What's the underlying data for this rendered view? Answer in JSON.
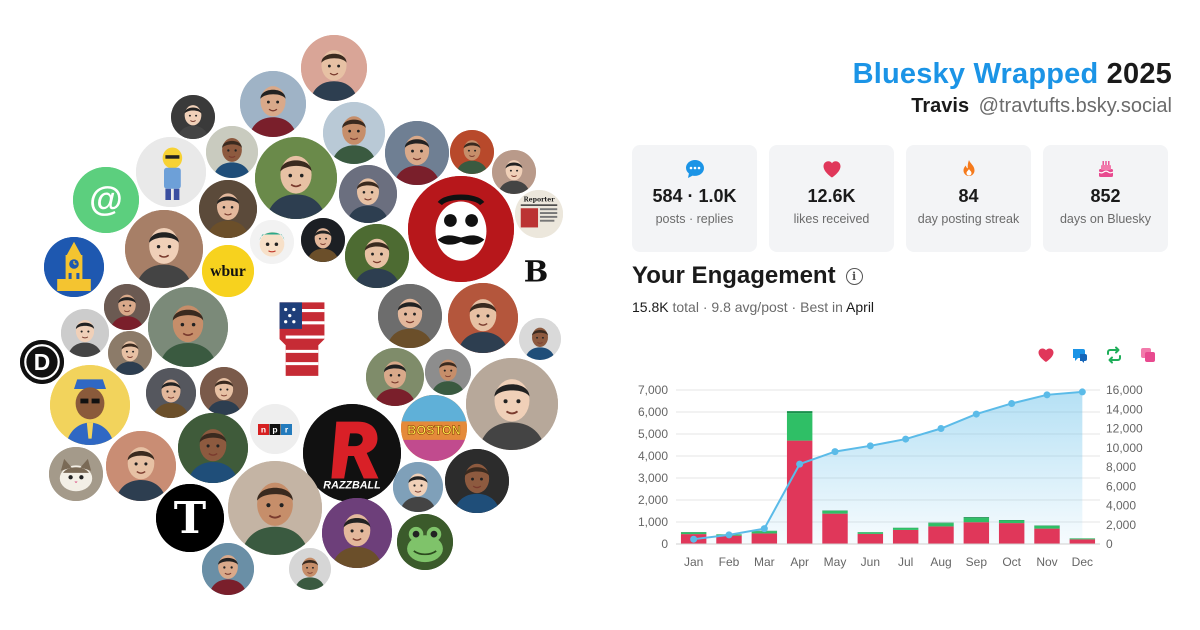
{
  "header": {
    "brand": "Bluesky Wrapped",
    "year": "2025",
    "name": "Travis",
    "handle": "@travtufts.bsky.social"
  },
  "stats": [
    {
      "icon": "speech-bubble-icon",
      "value": "584 · 1.0K",
      "label": "posts · replies"
    },
    {
      "icon": "heart-icon",
      "value": "12.6K",
      "label": "likes received"
    },
    {
      "icon": "flame-icon",
      "value": "84",
      "label": "day posting streak"
    },
    {
      "icon": "cake-icon",
      "value": "852",
      "label": "days on Bluesky"
    }
  ],
  "engagement": {
    "title": "Your Engagement",
    "total": "15.8K",
    "total_suffix": " total · 9.8 avg/post · Best in ",
    "best_month": "April"
  },
  "legend_icons": [
    "heart-icon",
    "reply-icon",
    "repost-icon",
    "quote-icon"
  ],
  "colors": {
    "brand": "#1b94e6",
    "likes": "#e0375a",
    "replies": "#3ec46d",
    "reposts": "#1f9e56",
    "quotes": "#e84a8f",
    "cumulative": "#5bbbe8"
  },
  "avatars": [
    {
      "name": "avatar-upside-down-person",
      "bg": "#d9a597"
    },
    {
      "name": "avatar-red-shirt-person",
      "bg": "#9fb3c6"
    },
    {
      "name": "avatar-blonde-woman",
      "bg": "#b9c9d6"
    },
    {
      "name": "avatar-dark-photo",
      "bg": "#3a3a3a"
    },
    {
      "name": "avatar-glasses-man",
      "bg": "#c9cbbf"
    },
    {
      "name": "avatar-cartoon-character",
      "bg": "#e6e6e6"
    },
    {
      "name": "avatar-cyclist",
      "bg": "#6a8a4a"
    },
    {
      "name": "avatar-statue",
      "bg": "#6f7f93"
    },
    {
      "name": "avatar-autumn-tree",
      "bg": "#b8492b"
    },
    {
      "name": "avatar-woman-portrait",
      "bg": "#b99a8a"
    },
    {
      "name": "avatar-at-sign-logo",
      "bg": "#5ccf7e"
    },
    {
      "name": "avatar-door-photo",
      "bg": "#5b4a3a"
    },
    {
      "name": "avatar-woman-red-jacket",
      "bg": "#6b6f7f"
    },
    {
      "name": "avatar-national-bohemian-logo",
      "bg": "#b7171b"
    },
    {
      "name": "avatar-newspaper",
      "bg": "#e8e3d8"
    },
    {
      "name": "avatar-young-woman",
      "bg": "#a77f67"
    },
    {
      "name": "avatar-cartoon-face",
      "bg": "#f1f1f1"
    },
    {
      "name": "avatar-dark-object",
      "bg": "#1c1f24"
    },
    {
      "name": "avatar-plant",
      "bg": "#4d6b32"
    },
    {
      "name": "avatar-boston-logo",
      "bg": "#ffffff"
    },
    {
      "name": "avatar-clock-tower-logo",
      "bg": "#1e58b0"
    },
    {
      "name": "avatar-wbur-logo",
      "bg": "#f7d21e"
    },
    {
      "name": "avatar-raised-fist-flag",
      "bg": "#ffffff"
    },
    {
      "name": "avatar-bald-man",
      "bg": "#6d6d6d"
    },
    {
      "name": "avatar-bearded-man",
      "bg": "#b4563c"
    },
    {
      "name": "avatar-building",
      "bg": "#6b5a52"
    },
    {
      "name": "avatar-sunglasses-man",
      "bg": "#7b8a79"
    },
    {
      "name": "avatar-man-glasses-2",
      "bg": "#ccc"
    },
    {
      "name": "avatar-suit-man",
      "bg": "#d9d9d9"
    },
    {
      "name": "avatar-d-logo",
      "bg": "#111111"
    },
    {
      "name": "avatar-crowd",
      "bg": "#8c7b69"
    },
    {
      "name": "avatar-smiling-woman",
      "bg": "#7f8c6a"
    },
    {
      "name": "avatar-man-smiling",
      "bg": "#8d8d8d"
    },
    {
      "name": "avatar-woman-selfie",
      "bg": "#b7a89a"
    },
    {
      "name": "avatar-cartoon-man",
      "bg": "#f2d35c"
    },
    {
      "name": "avatar-headphones-man",
      "bg": "#55575e"
    },
    {
      "name": "avatar-woman-smile-2",
      "bg": "#7a5a4a"
    },
    {
      "name": "avatar-npr-logo",
      "bg": "#eeeeee"
    },
    {
      "name": "avatar-razzball-logo",
      "bg": "#111111"
    },
    {
      "name": "avatar-boston-mural",
      "bg": "#e48a3a"
    },
    {
      "name": "avatar-big-man",
      "bg": "#3f5b3a"
    },
    {
      "name": "avatar-cat",
      "bg": "#a49a8a"
    },
    {
      "name": "avatar-thick-glasses-man",
      "bg": "#c98d74"
    },
    {
      "name": "avatar-nyt-logo",
      "bg": "#000000"
    },
    {
      "name": "avatar-young-woman-2",
      "bg": "#c4b4a4"
    },
    {
      "name": "avatar-outdoor-person",
      "bg": "#7fa0b9"
    },
    {
      "name": "avatar-man-headshot",
      "bg": "#2c2c2c"
    },
    {
      "name": "avatar-purple-glasses-man",
      "bg": "#6d3f7a"
    },
    {
      "name": "avatar-frog",
      "bg": "#3b5a2b"
    },
    {
      "name": "avatar-man-outdoors",
      "bg": "#6a8fa6"
    },
    {
      "name": "avatar-man-suit-2",
      "bg": "#d6d6d6"
    }
  ],
  "logo_text": {
    "at": "@",
    "wbur": "wbur",
    "npr": "npr",
    "razz": "RAZZBALL",
    "d": "D",
    "b": "B",
    "nyt": "T",
    "boston": "BOSTON",
    "reporter": "Reporter"
  },
  "chart_data": {
    "type": "bar",
    "categories": [
      "Jan",
      "Feb",
      "Mar",
      "Apr",
      "May",
      "Jun",
      "Jul",
      "Aug",
      "Sep",
      "Oct",
      "Nov",
      "Dec"
    ],
    "series": [
      {
        "name": "likes",
        "values": [
          450,
          380,
          480,
          4700,
          1380,
          460,
          640,
          800,
          990,
          950,
          700,
          210
        ]
      },
      {
        "name": "replies",
        "values": [
          70,
          50,
          100,
          1250,
          120,
          70,
          90,
          150,
          190,
          120,
          120,
          40
        ]
      },
      {
        "name": "reposts",
        "values": [
          20,
          10,
          20,
          90,
          20,
          10,
          10,
          20,
          40,
          20,
          20,
          5
        ]
      },
      {
        "name": "cumulative",
        "values": [
          500,
          950,
          1600,
          8300,
          9600,
          10200,
          10900,
          12000,
          13500,
          14600,
          15500,
          15800
        ]
      }
    ],
    "ylim_left": [
      0,
      7000
    ],
    "yticks_left": [
      "0",
      "1,000",
      "2,000",
      "3,000",
      "4,000",
      "5,000",
      "6,000",
      "7,000"
    ],
    "ylim_right": [
      0,
      16000
    ],
    "yticks_right": [
      "0",
      "2,000",
      "4,000",
      "6,000",
      "8,000",
      "10,000",
      "12,000",
      "14,000",
      "16,000"
    ],
    "grid": true
  }
}
